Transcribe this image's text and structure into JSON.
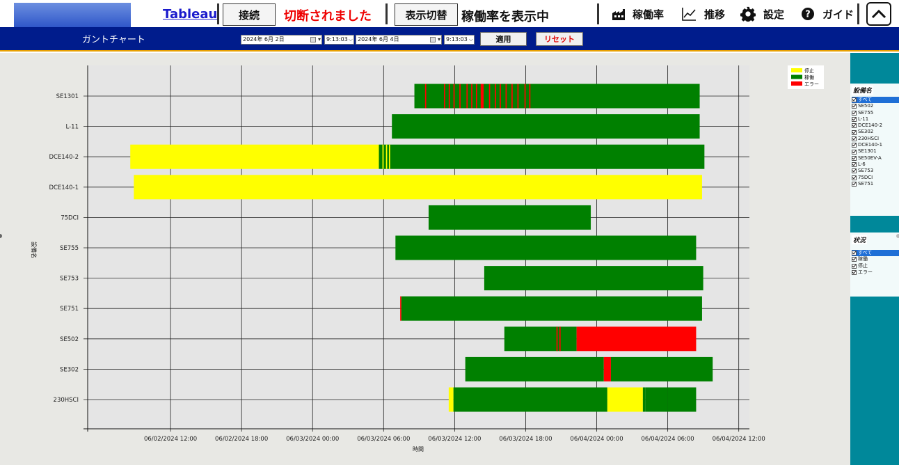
{
  "toolbar": {
    "tableau_link": "Tableau",
    "connect_label": "接続",
    "disconnect_status": "切断されました",
    "toggle_label": "表示切替",
    "mode_text": "稼働率を表示中",
    "menu_uptime": "稼働率",
    "menu_trend": "推移",
    "menu_settings": "設定",
    "menu_guide": "ガイド"
  },
  "filterbar": {
    "title": "ガントチャート",
    "start_date": "2024年  6月  2日",
    "start_time": "9:13:03",
    "end_date": "2024年  6月  4日",
    "end_time": "9:13:03",
    "apply_label": "適用",
    "reset_label": "リセット"
  },
  "right_panel": {
    "equipment_title": "設備名",
    "equipment_items": [
      "すべて",
      "SE502",
      "SE755",
      "L-11",
      "DCE140-2",
      "SE302",
      "230HSCI",
      "DCE140-1",
      "SE1301",
      "SE50EV-A",
      "L-6",
      "SE753",
      "75DCI",
      "SE751"
    ],
    "equipment_selected": 0,
    "status_title": "状況",
    "status_items": [
      "すべて",
      "稼働",
      "停止",
      "エラー"
    ],
    "status_selected": 0
  },
  "chart_data": {
    "type": "gantt",
    "ylabel": "設備名",
    "xlabel": "時間",
    "x_ticks": [
      "06/02/2024 12:00",
      "06/02/2024 18:00",
      "06/03/2024 00:00",
      "06/03/2024 06:00",
      "06/03/2024 12:00",
      "06/03/2024 18:00",
      "06/04/2024 00:00",
      "06/04/2024 06:00",
      "06/04/2024 12:00"
    ],
    "x_range_hours": [
      5.0,
      60.9
    ],
    "grid": true,
    "legend_position": "top-right",
    "legend": [
      {
        "label": "停止",
        "color": "#ffff00"
      },
      {
        "label": "稼働",
        "color": "#008000"
      },
      {
        "label": "エラー",
        "color": "#ff0000"
      }
    ],
    "rows": [
      {
        "name": "SE1301",
        "segments": [
          {
            "start": 32.6,
            "end": 56.7,
            "status": "稼働"
          },
          {
            "start": 33.5,
            "end": 33.6,
            "status": "エラー"
          },
          {
            "start": 35.1,
            "end": 35.2,
            "status": "エラー"
          },
          {
            "start": 35.5,
            "end": 35.6,
            "status": "エラー"
          },
          {
            "start": 35.9,
            "end": 36.0,
            "status": "エラー"
          },
          {
            "start": 36.4,
            "end": 36.5,
            "status": "エラー"
          },
          {
            "start": 37.0,
            "end": 37.1,
            "status": "エラー"
          },
          {
            "start": 37.4,
            "end": 37.5,
            "status": "エラー"
          },
          {
            "start": 37.8,
            "end": 37.9,
            "status": "エラー"
          },
          {
            "start": 38.2,
            "end": 38.45,
            "status": "エラー"
          },
          {
            "start": 38.9,
            "end": 39.0,
            "status": "エラー"
          },
          {
            "start": 39.4,
            "end": 39.5,
            "status": "エラー"
          },
          {
            "start": 39.8,
            "end": 39.9,
            "status": "エラー"
          },
          {
            "start": 40.3,
            "end": 40.4,
            "status": "エラー"
          },
          {
            "start": 40.8,
            "end": 40.9,
            "status": "エラー"
          },
          {
            "start": 41.3,
            "end": 41.4,
            "status": "エラー"
          },
          {
            "start": 41.9,
            "end": 42.0,
            "status": "エラー"
          },
          {
            "start": 42.3,
            "end": 42.4,
            "status": "エラー"
          }
        ]
      },
      {
        "name": "L-11",
        "segments": [
          {
            "start": 30.7,
            "end": 56.7,
            "status": "稼働"
          }
        ]
      },
      {
        "name": "DCE140-2",
        "segments": [
          {
            "start": 8.6,
            "end": 29.6,
            "status": "停止"
          },
          {
            "start": 29.6,
            "end": 57.1,
            "status": "稼働"
          },
          {
            "start": 29.9,
            "end": 30.0,
            "status": "停止"
          },
          {
            "start": 30.2,
            "end": 30.3,
            "status": "停止"
          },
          {
            "start": 30.45,
            "end": 30.55,
            "status": "停止"
          }
        ]
      },
      {
        "name": "DCE140-1",
        "segments": [
          {
            "start": 8.9,
            "end": 56.9,
            "status": "停止"
          }
        ]
      },
      {
        "name": "75DCI",
        "segments": [
          {
            "start": 33.8,
            "end": 47.5,
            "status": "稼働"
          }
        ]
      },
      {
        "name": "SE755",
        "segments": [
          {
            "start": 31.0,
            "end": 56.4,
            "status": "稼働"
          }
        ]
      },
      {
        "name": "SE753",
        "segments": [
          {
            "start": 38.5,
            "end": 57.0,
            "status": "稼働"
          }
        ]
      },
      {
        "name": "SE751",
        "segments": [
          {
            "start": 31.4,
            "end": 31.5,
            "status": "エラー"
          },
          {
            "start": 31.5,
            "end": 56.9,
            "status": "稼働"
          }
        ]
      },
      {
        "name": "SE502",
        "segments": [
          {
            "start": 40.2,
            "end": 46.3,
            "status": "稼働"
          },
          {
            "start": 44.6,
            "end": 44.7,
            "status": "エラー"
          },
          {
            "start": 44.85,
            "end": 44.95,
            "status": "エラー"
          },
          {
            "start": 46.3,
            "end": 56.4,
            "status": "エラー"
          }
        ]
      },
      {
        "name": "SE302",
        "segments": [
          {
            "start": 36.9,
            "end": 48.6,
            "status": "稼働"
          },
          {
            "start": 48.6,
            "end": 49.2,
            "status": "エラー"
          },
          {
            "start": 49.2,
            "end": 57.8,
            "status": "稼働"
          }
        ]
      },
      {
        "name": "230HSCI",
        "segments": [
          {
            "start": 35.5,
            "end": 35.9,
            "status": "停止"
          },
          {
            "start": 35.9,
            "end": 48.9,
            "status": "稼働"
          },
          {
            "start": 48.9,
            "end": 51.9,
            "status": "停止"
          },
          {
            "start": 51.9,
            "end": 52.1,
            "status": "稼働"
          },
          {
            "start": 52.1,
            "end": 54.0,
            "status": "稼働"
          },
          {
            "start": 54.0,
            "end": 56.4,
            "status": "稼働"
          }
        ]
      }
    ]
  }
}
